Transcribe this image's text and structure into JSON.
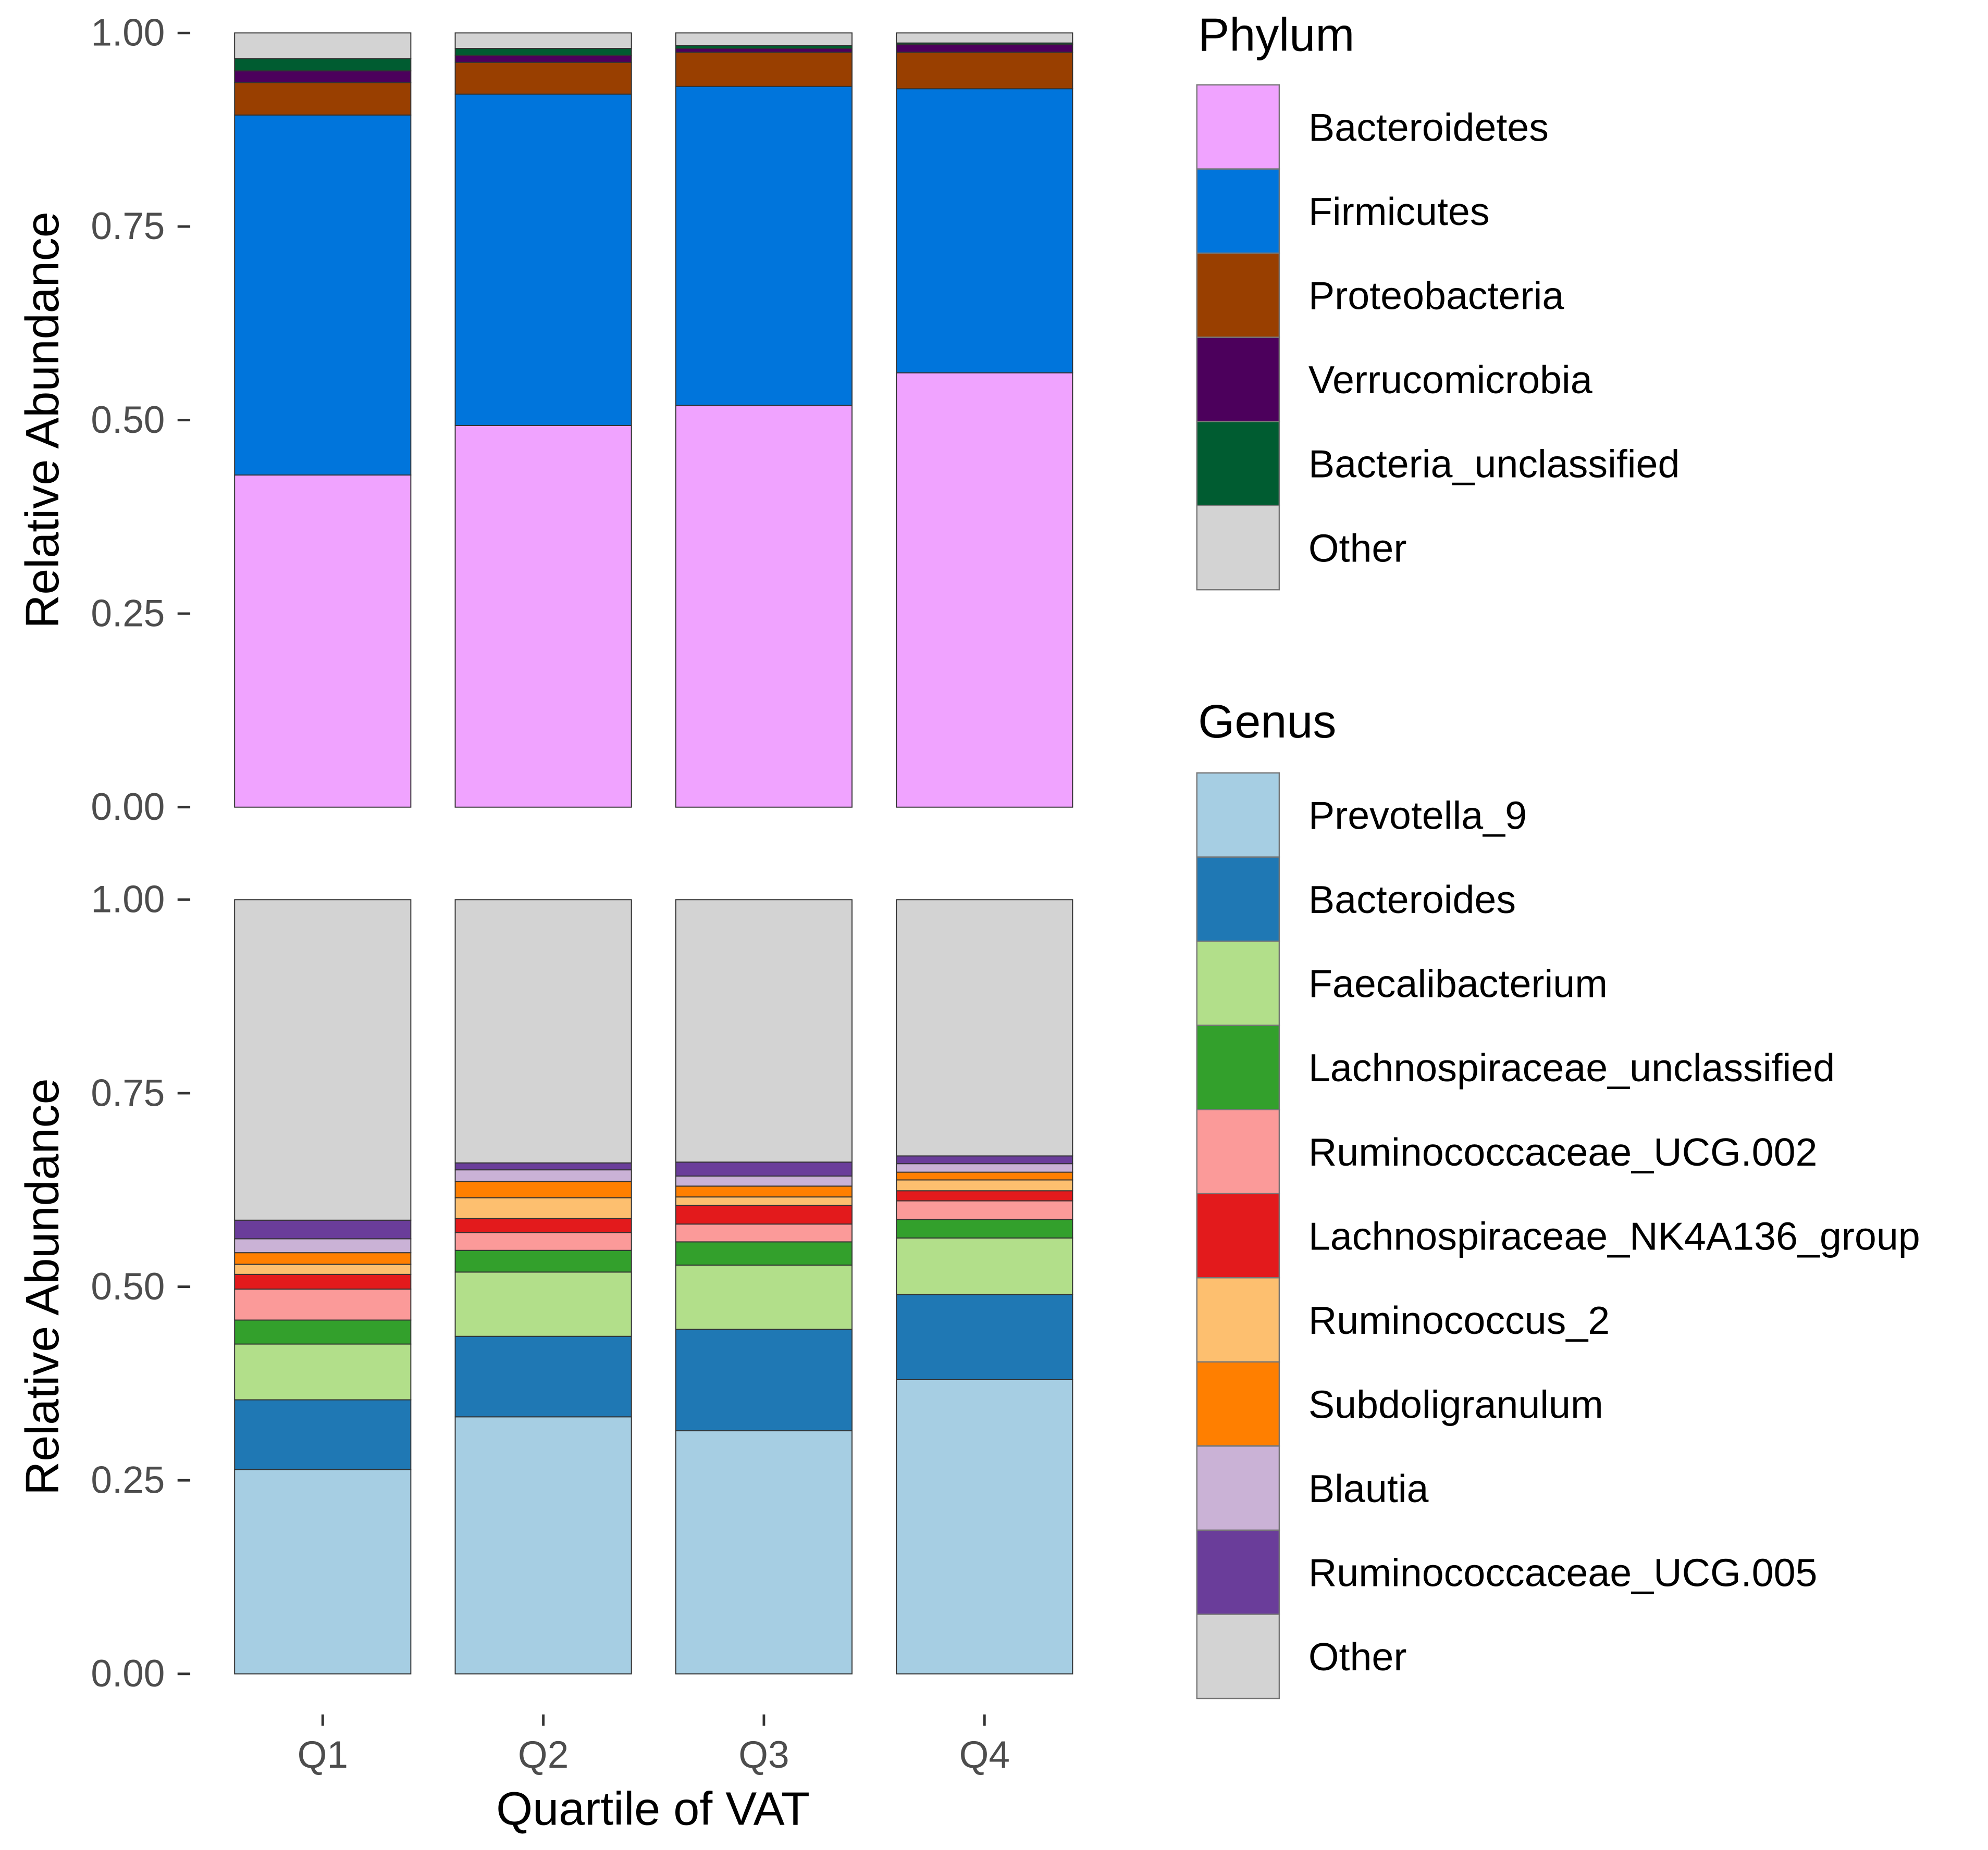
{
  "chart_data": [
    {
      "type": "bar",
      "stacked": true,
      "panel": "top",
      "ylabel": "Relative Abundance",
      "xlabel": "",
      "ylim": [
        0,
        1
      ],
      "yticks": [
        "0.00",
        "0.25",
        "0.50",
        "0.75",
        "1.00"
      ],
      "categories": [
        "Q1",
        "Q2",
        "Q3",
        "Q4"
      ],
      "legend_title": "Phylum",
      "legend_placement": "right",
      "series": [
        {
          "name": "Bacteroidetes",
          "color": "#F0A3FF",
          "values": [
            0.429,
            0.493,
            0.519,
            0.561
          ]
        },
        {
          "name": "Firmicutes",
          "color": "#0075DC",
          "values": [
            0.465,
            0.428,
            0.412,
            0.367
          ]
        },
        {
          "name": "Proteobacteria",
          "color": "#993F00",
          "values": [
            0.042,
            0.041,
            0.044,
            0.047
          ]
        },
        {
          "name": "Verrucomicrobia",
          "color": "#4C005C",
          "values": [
            0.015,
            0.009,
            0.005,
            0.01
          ]
        },
        {
          "name": "Bacteria_unclassified",
          "color": "#005C31",
          "values": [
            0.016,
            0.009,
            0.004,
            0.002
          ]
        },
        {
          "name": "Other",
          "color": "#D3D3D3",
          "values": [
            0.033,
            0.02,
            0.016,
            0.013
          ]
        }
      ]
    },
    {
      "type": "bar",
      "stacked": true,
      "panel": "bottom",
      "ylabel": "Relative Abundance",
      "xlabel": "Quartile of VAT",
      "ylim": [
        0,
        1
      ],
      "yticks": [
        "0.00",
        "0.25",
        "0.50",
        "0.75",
        "1.00"
      ],
      "categories": [
        "Q1",
        "Q2",
        "Q3",
        "Q4"
      ],
      "legend_title": "Genus",
      "legend_placement": "right",
      "series": [
        {
          "name": "Prevotella_9",
          "color": "#A6CEE3",
          "values": [
            0.264,
            0.332,
            0.314,
            0.38
          ]
        },
        {
          "name": "Bacteroides",
          "color": "#1F78B4",
          "values": [
            0.09,
            0.104,
            0.131,
            0.11
          ]
        },
        {
          "name": "Faecalibacterium",
          "color": "#B2DF8A",
          "values": [
            0.072,
            0.083,
            0.083,
            0.073
          ]
        },
        {
          "name": "Lachnospiraceae_unclassified",
          "color": "#33A02C",
          "values": [
            0.031,
            0.028,
            0.03,
            0.024
          ]
        },
        {
          "name": "Ruminococcaceae_UCG.002",
          "color": "#FB9A99",
          "values": [
            0.04,
            0.023,
            0.023,
            0.024
          ]
        },
        {
          "name": "Lachnospiraceae_NK4A136_group",
          "color": "#E31A1C",
          "values": [
            0.019,
            0.018,
            0.024,
            0.013
          ]
        },
        {
          "name": "Ruminococcus_2",
          "color": "#FDBF6F",
          "values": [
            0.013,
            0.027,
            0.011,
            0.014
          ]
        },
        {
          "name": "Subdoligranulum",
          "color": "#FF7F00",
          "values": [
            0.015,
            0.021,
            0.014,
            0.01
          ]
        },
        {
          "name": "Blautia",
          "color": "#CAB2D6",
          "values": [
            0.018,
            0.015,
            0.013,
            0.011
          ]
        },
        {
          "name": "Ruminococcaceae_UCG.005",
          "color": "#6A3D9A",
          "values": [
            0.024,
            0.009,
            0.018,
            0.01
          ]
        },
        {
          "name": "Other",
          "color": "#D3D3D3",
          "values": [
            0.414,
            0.34,
            0.339,
            0.331
          ]
        }
      ]
    }
  ]
}
